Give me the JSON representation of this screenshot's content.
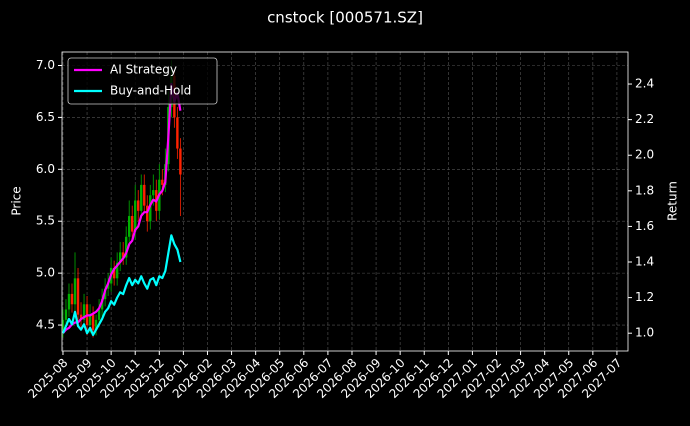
{
  "chart_data": {
    "type": "candlestick",
    "title": "cnstock [000571.SZ]",
    "ylabel": "Price",
    "y2label": "Return",
    "x": [
      0,
      0.125,
      0.25,
      0.375,
      0.5,
      0.625,
      0.75,
      0.875,
      1,
      1.125,
      1.25,
      1.375,
      1.5,
      1.625,
      1.75,
      1.875,
      2,
      2.125,
      2.25,
      2.375,
      2.5,
      2.625,
      2.75,
      2.875,
      3,
      3.125,
      3.25,
      3.375,
      3.5,
      3.625,
      3.75,
      3.875,
      4,
      4.125,
      4.25,
      4.375,
      4.5,
      4.625,
      4.75,
      4.875
    ],
    "open": [
      4.45,
      4.55,
      4.65,
      4.8,
      4.7,
      4.95,
      4.6,
      4.55,
      4.7,
      4.5,
      4.6,
      4.45,
      4.55,
      4.65,
      4.75,
      4.85,
      4.9,
      5.05,
      4.95,
      5.1,
      5.2,
      5.15,
      5.35,
      5.55,
      5.4,
      5.7,
      5.6,
      5.85,
      5.65,
      5.5,
      5.75,
      5.8,
      5.6,
      5.9,
      5.85,
      6.05,
      6.6,
      6.9,
      6.5,
      6.2
    ],
    "high": [
      4.65,
      4.75,
      4.9,
      4.9,
      5.2,
      5.05,
      4.72,
      4.8,
      4.78,
      4.7,
      4.68,
      4.6,
      4.75,
      4.85,
      4.95,
      5,
      5.15,
      5.12,
      5.2,
      5.3,
      5.3,
      5.45,
      5.7,
      5.65,
      5.85,
      5.8,
      5.95,
      5.95,
      5.75,
      5.85,
      5.95,
      5.9,
      6.05,
      6,
      6.2,
      6.75,
      7.05,
      6.95,
      6.6,
      6.3
    ],
    "low": [
      4.38,
      4.48,
      4.58,
      4.62,
      4.62,
      4.52,
      4.45,
      4.5,
      4.4,
      4.42,
      4.38,
      4.4,
      4.48,
      4.58,
      4.68,
      4.78,
      4.82,
      4.88,
      4.88,
      5.02,
      5.08,
      5.08,
      5.28,
      5.32,
      5.32,
      5.5,
      5.52,
      5.58,
      5.4,
      5.42,
      5.65,
      5.5,
      5.52,
      5.75,
      5.78,
      5.98,
      6.5,
      6.4,
      6.1,
      5.55
    ],
    "close": [
      4.55,
      4.65,
      4.8,
      4.7,
      4.95,
      4.6,
      4.55,
      4.7,
      4.5,
      4.6,
      4.45,
      4.55,
      4.65,
      4.75,
      4.85,
      4.9,
      5.05,
      4.95,
      5.1,
      5.2,
      5.15,
      5.35,
      5.55,
      5.4,
      5.7,
      5.6,
      5.85,
      5.65,
      5.5,
      5.75,
      5.8,
      5.6,
      5.9,
      5.85,
      6.05,
      6.6,
      6.9,
      6.5,
      6.2,
      5.95
    ],
    "up_color": "#00b000",
    "down_color": "#ff2200",
    "series": [
      {
        "name": "AI Strategy",
        "color": "#ff00ff",
        "axis": "y2",
        "values": [
          1,
          1.02,
          1.03,
          1.05,
          1.06,
          1.06,
          1.08,
          1.09,
          1.1,
          1.1,
          1.11,
          1.12,
          1.14,
          1.18,
          1.24,
          1.28,
          1.33,
          1.36,
          1.38,
          1.4,
          1.42,
          1.45,
          1.5,
          1.52,
          1.58,
          1.6,
          1.66,
          1.68,
          1.68,
          1.72,
          1.75,
          1.74,
          1.78,
          1.8,
          1.85,
          2.1,
          2.4,
          2.3,
          2.35,
          2.25
        ]
      },
      {
        "name": "Buy-and-Hold",
        "color": "#00ffff",
        "axis": "y2",
        "values": [
          1,
          1.04,
          1.08,
          1.05,
          1.12,
          1.04,
          1.02,
          1.05,
          1,
          1.03,
          0.99,
          1.02,
          1.05,
          1.08,
          1.12,
          1.14,
          1.18,
          1.16,
          1.2,
          1.23,
          1.22,
          1.27,
          1.31,
          1.27,
          1.3,
          1.28,
          1.32,
          1.28,
          1.25,
          1.3,
          1.31,
          1.27,
          1.32,
          1.31,
          1.35,
          1.45,
          1.55,
          1.5,
          1.47,
          1.4
        ]
      }
    ],
    "xlim": [
      -0.04,
      23.46
    ],
    "xticks": [
      {
        "value": 0,
        "label": "2025-08"
      },
      {
        "value": 1,
        "label": "2025-09"
      },
      {
        "value": 2,
        "label": "2025-10"
      },
      {
        "value": 3,
        "label": "2025-11"
      },
      {
        "value": 4,
        "label": "2025-12"
      },
      {
        "value": 5,
        "label": "2026-01"
      },
      {
        "value": 6,
        "label": "2026-02"
      },
      {
        "value": 7,
        "label": "2026-03"
      },
      {
        "value": 8,
        "label": "2026-04"
      },
      {
        "value": 9,
        "label": "2026-05"
      },
      {
        "value": 10,
        "label": "2026-06"
      },
      {
        "value": 11,
        "label": "2026-07"
      },
      {
        "value": 12,
        "label": "2026-08"
      },
      {
        "value": 13,
        "label": "2026-09"
      },
      {
        "value": 14,
        "label": "2026-10"
      },
      {
        "value": 15,
        "label": "2026-11"
      },
      {
        "value": 16,
        "label": "2026-12"
      },
      {
        "value": 17,
        "label": "2027-01"
      },
      {
        "value": 18,
        "label": "2027-02"
      },
      {
        "value": 19,
        "label": "2027-03"
      },
      {
        "value": 20,
        "label": "2027-04"
      },
      {
        "value": 21,
        "label": "2027-05"
      },
      {
        "value": 22,
        "label": "2027-06"
      },
      {
        "value": 23,
        "label": "2027-07"
      }
    ],
    "ylim": [
      4.25,
      7.13
    ],
    "yticks": [
      4.5,
      {
        "value": 5,
        "label": "5.0"
      },
      5.5,
      {
        "value": 6,
        "label": "6.0"
      },
      6.5,
      {
        "value": 7,
        "label": "7.0"
      }
    ],
    "y2lim": [
      0.9,
      2.58
    ],
    "y2ticks": [
      {
        "value": 1,
        "label": "1.0"
      },
      1.2,
      1.4,
      1.6,
      1.8,
      {
        "value": 2,
        "label": "2.0"
      },
      2.2,
      2.4
    ],
    "grid": true,
    "legend": "upper left"
  }
}
